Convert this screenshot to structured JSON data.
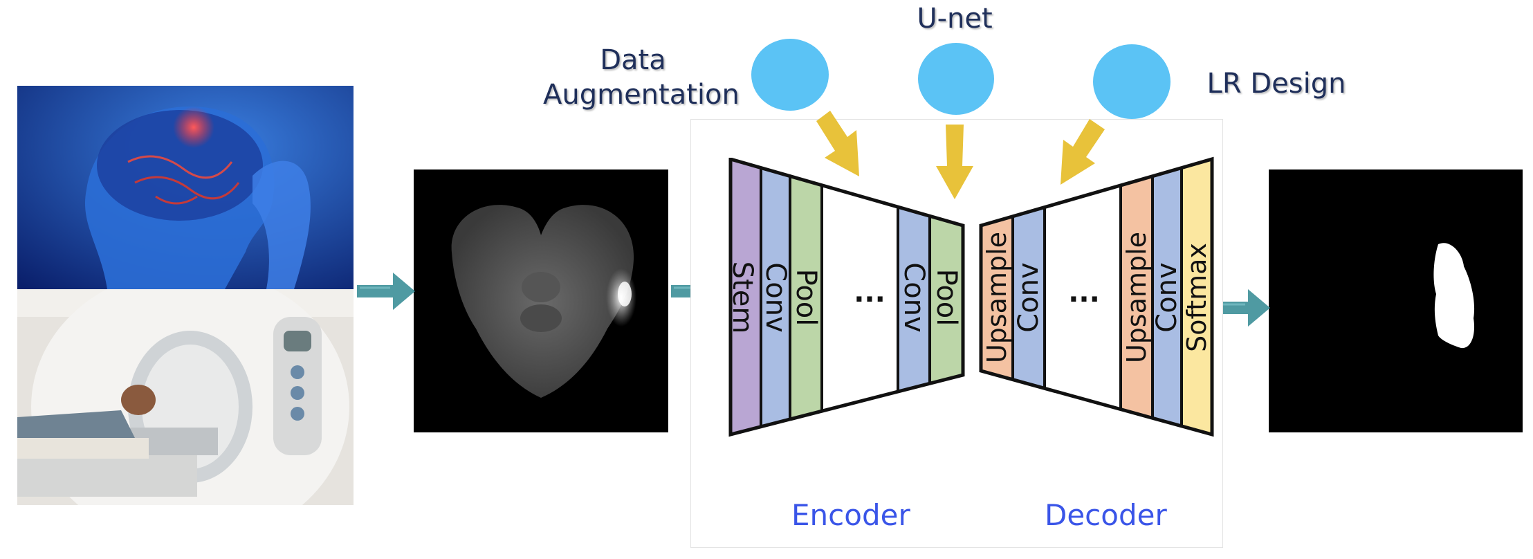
{
  "labels": {
    "data_augmentation": "Data Augmentation",
    "unet": "U-net",
    "lr_design": "LR Design"
  },
  "encoder": {
    "title": "Encoder",
    "layers": [
      "Stem",
      "Conv",
      "Pool",
      "...",
      "Conv",
      "Pool"
    ]
  },
  "decoder": {
    "title": "Decoder",
    "layers": [
      "Upsample",
      "Conv",
      "...",
      "Upsample",
      "Conv",
      "Softmax"
    ]
  },
  "colors": {
    "stem": "#b9a6d3",
    "conv": "#a9bde3",
    "pool": "#bcd6a8",
    "upsample": "#f4c2a2",
    "softmax": "#fbe7a0",
    "circle": "#5bc3f5",
    "yellow_arrow": "#e8c23a",
    "teal_arrow": "#3c8f98",
    "label_text": "#1f2f5a",
    "section_text": "#3a55e8"
  },
  "icons": [
    "brain-scan-photo",
    "ct-scanner-photo",
    "mri-slice-image",
    "segmentation-mask-image"
  ]
}
